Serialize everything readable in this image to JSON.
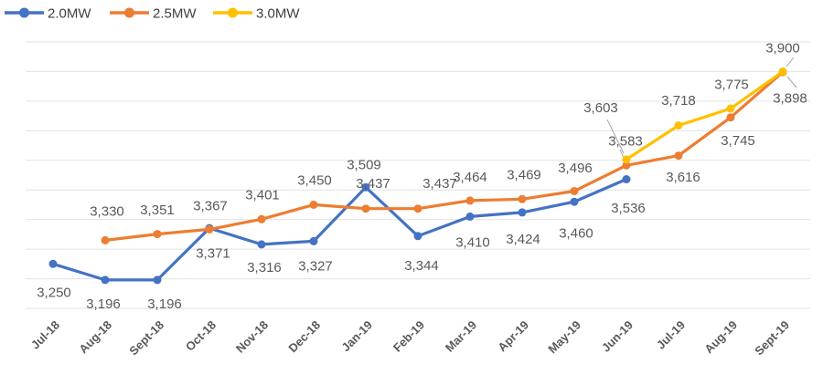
{
  "chart_data": {
    "type": "line",
    "title": "",
    "xlabel": "",
    "ylabel": "",
    "categories": [
      "Jul-18",
      "Aug-18",
      "Sept-18",
      "Oct-18",
      "Nov-18",
      "Dec-18",
      "Jan-19",
      "Feb-19",
      "Mar-19",
      "Apr-19",
      "May-19",
      "Jun-19",
      "Jul-19",
      "Aug-19",
      "Sept-19"
    ],
    "series": [
      {
        "name": "2.0MW",
        "color": "#4472C4",
        "values": [
          3250,
          3196,
          3196,
          3371,
          3316,
          3327,
          3509,
          3344,
          3410,
          3424,
          3460,
          3536,
          null,
          null,
          null
        ]
      },
      {
        "name": "2.5MW",
        "color": "#ED7D31",
        "values": [
          null,
          3330,
          3351,
          3367,
          3401,
          3450,
          3437,
          3437,
          3464,
          3469,
          3496,
          3583,
          3616,
          3745,
          3898
        ]
      },
      {
        "name": "3.0MW",
        "color": "#FFC000",
        "values": [
          null,
          null,
          null,
          null,
          null,
          null,
          null,
          null,
          null,
          null,
          null,
          3603,
          3718,
          3775,
          3900
        ]
      }
    ],
    "ylim": [
      3100,
      4000
    ],
    "gridline_interval": 100,
    "grid": true,
    "legend_position": "top-left",
    "data_labels": true,
    "colors": {
      "gridline": "#e2e2e2",
      "data_label": "#595959",
      "axis_label": "#595959",
      "legend_label": "#3f3f3f",
      "leader_line": "#a6a6a6",
      "background": "#ffffff"
    }
  }
}
